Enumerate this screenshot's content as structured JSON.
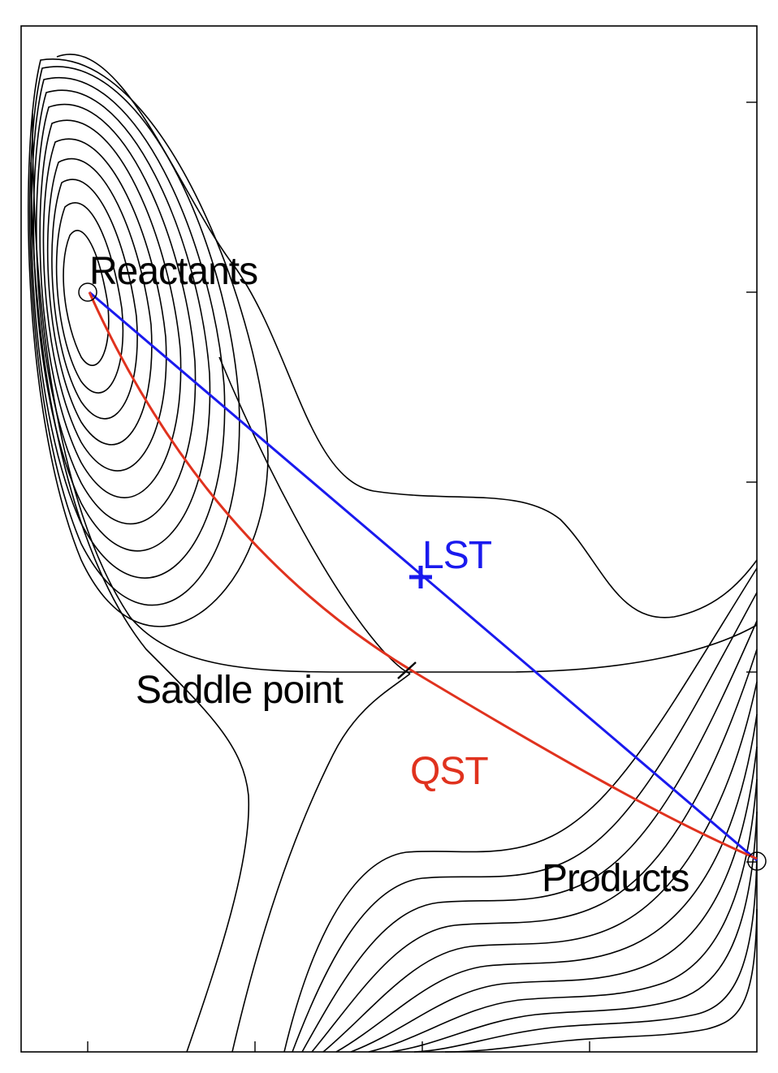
{
  "labels": {
    "reactants": "Reactants",
    "products": "Products",
    "saddle_point": "Saddle point",
    "lst": "LST",
    "qst": "QST"
  },
  "colors": {
    "lst": "#1a1aee",
    "qst": "#e0321e",
    "contour": "#000000",
    "background": "#ffffff"
  }
}
